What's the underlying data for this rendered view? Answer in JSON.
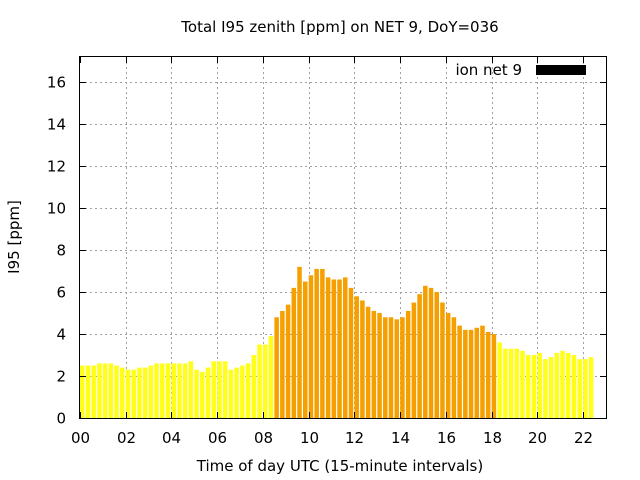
{
  "chart_data": {
    "type": "bar",
    "title": "Total I95 zenith [ppm] on NET 9, DoY=036",
    "xlabel": "Time of day UTC (15-minute intervals)",
    "ylabel": "I95 [ppm]",
    "xlim": [
      0,
      23
    ],
    "ylim": [
      0,
      17.2
    ],
    "xticks": [
      "00",
      "02",
      "04",
      "06",
      "08",
      "10",
      "12",
      "14",
      "16",
      "18",
      "20",
      "22"
    ],
    "yticks": [
      "0",
      "2",
      "4",
      "6",
      "8",
      "10",
      "12",
      "14",
      "16"
    ],
    "grid": true,
    "legend": {
      "position": "top-right",
      "label": "ion net 9",
      "color": "#000000"
    },
    "colors": {
      "low": "#ffff1a",
      "high": "#f5a000",
      "highlight_range_hours": [
        8.5,
        18.25
      ]
    },
    "interval_hours": 0.25,
    "values": [
      2.5,
      2.5,
      2.5,
      2.6,
      2.6,
      2.6,
      2.5,
      2.4,
      2.3,
      2.3,
      2.4,
      2.4,
      2.5,
      2.6,
      2.6,
      2.6,
      2.6,
      2.6,
      2.6,
      2.7,
      2.3,
      2.2,
      2.4,
      2.7,
      2.7,
      2.7,
      2.3,
      2.4,
      2.5,
      2.6,
      3.0,
      3.5,
      3.5,
      3.9,
      4.8,
      5.1,
      5.4,
      6.2,
      7.2,
      6.5,
      6.8,
      7.1,
      7.1,
      6.7,
      6.6,
      6.6,
      6.7,
      6.2,
      5.8,
      5.6,
      5.3,
      5.1,
      5.0,
      4.8,
      4.8,
      4.7,
      4.8,
      5.1,
      5.5,
      5.9,
      6.3,
      6.2,
      6.0,
      5.5,
      5.0,
      4.8,
      4.4,
      4.2,
      4.2,
      4.3,
      4.4,
      4.1,
      4.0,
      3.6,
      3.3,
      3.3,
      3.3,
      3.2,
      3.0,
      3.0,
      3.1,
      2.8,
      2.9,
      3.1,
      3.2,
      3.1,
      3.0,
      2.8,
      2.8,
      2.9
    ]
  }
}
